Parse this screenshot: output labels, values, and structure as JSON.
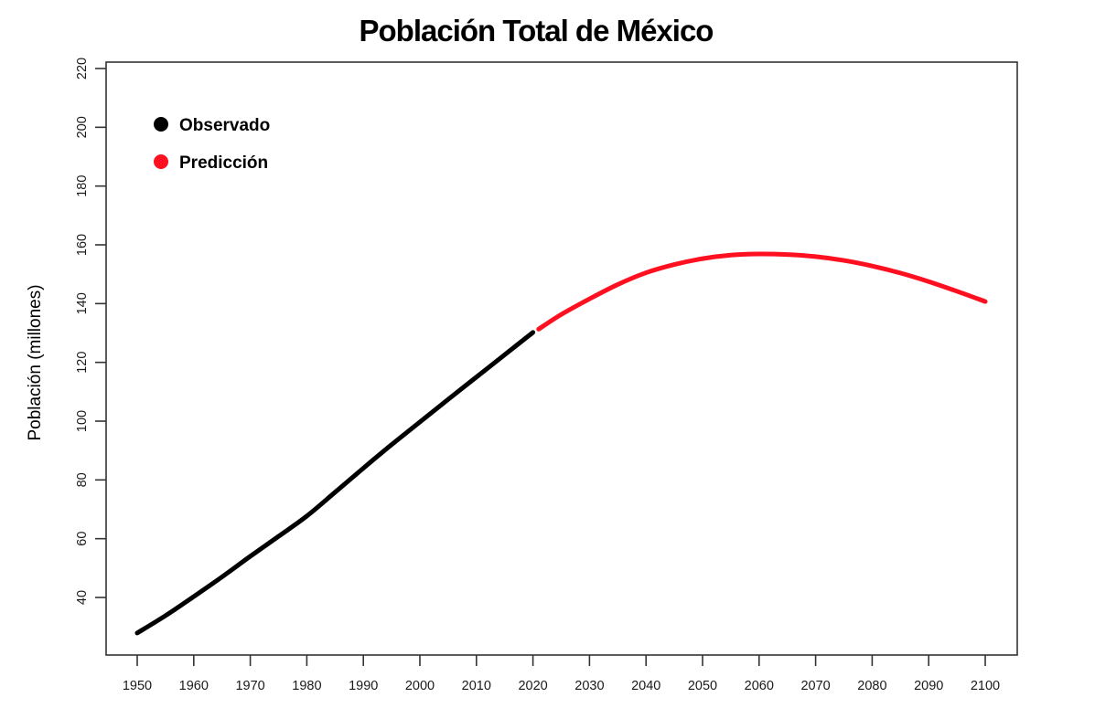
{
  "chart_data": {
    "type": "line",
    "title": "Población Total de México",
    "xlabel": "",
    "ylabel": "Población (millones)",
    "xlim": [
      1945,
      2106
    ],
    "ylim": [
      28,
      222
    ],
    "x_ticks": [
      1950,
      1960,
      1970,
      1980,
      1990,
      2000,
      2010,
      2020,
      2030,
      2040,
      2050,
      2060,
      2070,
      2080,
      2090,
      2100
    ],
    "x_tick_labels": [
      "1950",
      "1960",
      "1970",
      "1980",
      "1990",
      "2000",
      "2010",
      "2020",
      "2030",
      "2040",
      "2050",
      "2060",
      "2070",
      "2080",
      "2090",
      "2100"
    ],
    "y_ticks": [
      40,
      60,
      80,
      100,
      120,
      140,
      160,
      180,
      200,
      220
    ],
    "y_tick_labels": [
      "40",
      "60",
      "80",
      "100",
      "120",
      "140",
      "160",
      "180",
      "200",
      "220"
    ],
    "grid": false,
    "legend_position": "top-left",
    "series": [
      {
        "name": "Observado",
        "color": "#000000",
        "x": [
          1950,
          1955,
          1960,
          1965,
          1970,
          1975,
          1980,
          1985,
          1990,
          1995,
          2000,
          2005,
          2010,
          2015,
          2020
        ],
        "values": [
          27.9,
          33.8,
          40.3,
          47.0,
          54.0,
          60.8,
          67.7,
          75.8,
          84.0,
          92.0,
          99.7,
          107.4,
          115.0,
          122.6,
          130.2
        ]
      },
      {
        "name": "Predicción",
        "color": "#ff1020",
        "x": [
          2021,
          2025,
          2030,
          2035,
          2040,
          2045,
          2050,
          2055,
          2060,
          2065,
          2070,
          2075,
          2080,
          2085,
          2090,
          2095,
          2100
        ],
        "values": [
          131.3,
          136.3,
          141.6,
          146.5,
          150.5,
          153.3,
          155.3,
          156.5,
          156.9,
          156.7,
          156.0,
          154.7,
          152.8,
          150.4,
          147.5,
          144.2,
          140.7
        ]
      }
    ]
  }
}
